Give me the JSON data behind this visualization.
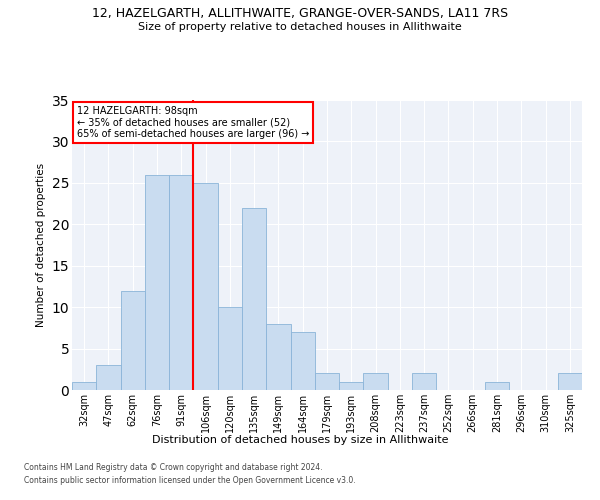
{
  "title1": "12, HAZELGARTH, ALLITHWAITE, GRANGE-OVER-SANDS, LA11 7RS",
  "title2": "Size of property relative to detached houses in Allithwaite",
  "xlabel": "Distribution of detached houses by size in Allithwaite",
  "ylabel": "Number of detached properties",
  "categories": [
    "32sqm",
    "47sqm",
    "62sqm",
    "76sqm",
    "91sqm",
    "106sqm",
    "120sqm",
    "135sqm",
    "149sqm",
    "164sqm",
    "179sqm",
    "193sqm",
    "208sqm",
    "223sqm",
    "237sqm",
    "252sqm",
    "266sqm",
    "281sqm",
    "296sqm",
    "310sqm",
    "325sqm"
  ],
  "values": [
    1,
    3,
    12,
    26,
    26,
    25,
    10,
    22,
    8,
    7,
    2,
    1,
    2,
    0,
    2,
    0,
    0,
    1,
    0,
    0,
    2
  ],
  "bar_color": "#c9dcf0",
  "bar_edge_color": "#8ab4d8",
  "bar_width": 1.0,
  "vline_color": "red",
  "vline_pos": 4.5,
  "annotation_title": "12 HAZELGARTH: 98sqm",
  "annotation_line1": "← 35% of detached houses are smaller (52)",
  "annotation_line2": "65% of semi-detached houses are larger (96) →",
  "ylim": [
    0,
    35
  ],
  "yticks": [
    0,
    5,
    10,
    15,
    20,
    25,
    30,
    35
  ],
  "background_color": "#eef2f9",
  "grid_color": "white",
  "footer1": "Contains HM Land Registry data © Crown copyright and database right 2024.",
  "footer2": "Contains public sector information licensed under the Open Government Licence v3.0."
}
